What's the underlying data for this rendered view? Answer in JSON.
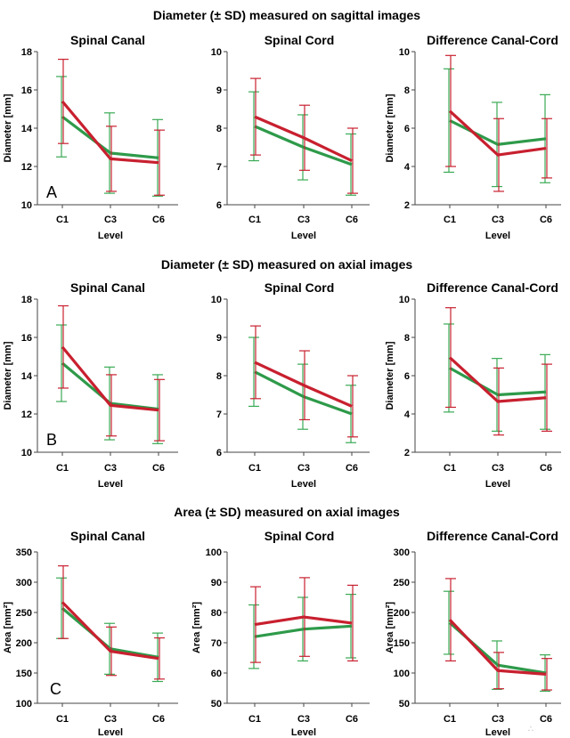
{
  "sections": [
    {
      "title": "Diameter (± SD) measured on sagittal images",
      "letter": "A",
      "ylabel": "Diameter [mm]",
      "xlabel": "Level"
    },
    {
      "title": "Diameter (± SD) measured on axial images",
      "letter": "B",
      "ylabel": "Diameter [mm]",
      "xlabel": "Level"
    },
    {
      "title": "Area (± SD) measured on axial images",
      "letter": "C",
      "ylabel": "Area [mm²]",
      "xlabel": "Level"
    }
  ],
  "colors": {
    "red": "#c8202f",
    "green": "#2e9a4a",
    "red_error": "#c8202f",
    "green_error": "#3aaa55"
  },
  "chart_data": [
    {
      "type": "line",
      "section": 0,
      "title": "Spinal Canal",
      "categories": [
        "C1",
        "C3",
        "C6"
      ],
      "ylim": [
        10,
        18
      ],
      "yticks": [
        10,
        12,
        14,
        16,
        18
      ],
      "xlabel": "Level",
      "ylabel": "Diameter [mm]",
      "series": [
        {
          "color": "red",
          "values": [
            15.4,
            12.4,
            12.2
          ],
          "sd": [
            2.2,
            1.7,
            1.7
          ]
        },
        {
          "color": "green",
          "values": [
            14.6,
            12.7,
            12.45
          ],
          "sd": [
            2.1,
            2.1,
            2.0
          ]
        }
      ]
    },
    {
      "type": "line",
      "section": 0,
      "title": "Spinal Cord",
      "categories": [
        "C1",
        "C3",
        "C6"
      ],
      "ylim": [
        6,
        10
      ],
      "yticks": [
        6,
        7,
        8,
        9,
        10
      ],
      "xlabel": "Level",
      "ylabel": "",
      "series": [
        {
          "color": "red",
          "values": [
            8.3,
            7.75,
            7.15
          ],
          "sd": [
            1.0,
            0.85,
            0.85
          ]
        },
        {
          "color": "green",
          "values": [
            8.05,
            7.5,
            7.05
          ],
          "sd": [
            0.9,
            0.85,
            0.8
          ]
        }
      ]
    },
    {
      "type": "line",
      "section": 0,
      "title": "Difference Canal-Cord",
      "categories": [
        "C1",
        "C3",
        "C6"
      ],
      "ylim": [
        2,
        10
      ],
      "yticks": [
        2,
        4,
        6,
        8,
        10
      ],
      "xlabel": "Level",
      "ylabel": "Diameter [mm]",
      "series": [
        {
          "color": "red",
          "values": [
            6.9,
            4.6,
            4.95
          ],
          "sd": [
            2.9,
            1.9,
            1.55
          ]
        },
        {
          "color": "green",
          "values": [
            6.4,
            5.15,
            5.45
          ],
          "sd": [
            2.7,
            2.2,
            2.3
          ]
        }
      ]
    },
    {
      "type": "line",
      "section": 1,
      "title": "Spinal Canal",
      "categories": [
        "C1",
        "C3",
        "C6"
      ],
      "ylim": [
        10,
        18
      ],
      "yticks": [
        10,
        12,
        14,
        16,
        18
      ],
      "xlabel": "Level",
      "ylabel": "Diameter [mm]",
      "series": [
        {
          "color": "red",
          "values": [
            15.5,
            12.45,
            12.2
          ],
          "sd": [
            2.15,
            1.6,
            1.6
          ]
        },
        {
          "color": "green",
          "values": [
            14.65,
            12.55,
            12.25
          ],
          "sd": [
            2.0,
            1.9,
            1.8
          ]
        }
      ]
    },
    {
      "type": "line",
      "section": 1,
      "title": "Spinal Cord",
      "categories": [
        "C1",
        "C3",
        "C6"
      ],
      "ylim": [
        6,
        10
      ],
      "yticks": [
        6,
        7,
        8,
        9,
        10
      ],
      "xlabel": "Level",
      "ylabel": "",
      "series": [
        {
          "color": "red",
          "values": [
            8.35,
            7.75,
            7.2
          ],
          "sd": [
            0.95,
            0.9,
            0.8
          ]
        },
        {
          "color": "green",
          "values": [
            8.1,
            7.45,
            7.0
          ],
          "sd": [
            0.9,
            0.85,
            0.75
          ]
        }
      ]
    },
    {
      "type": "line",
      "section": 1,
      "title": "Difference Canal-Cord",
      "categories": [
        "C1",
        "C3",
        "C6"
      ],
      "ylim": [
        2,
        10
      ],
      "yticks": [
        2,
        4,
        6,
        8,
        10
      ],
      "xlabel": "Level",
      "ylabel": "Diameter [mm]",
      "series": [
        {
          "color": "red",
          "values": [
            6.95,
            4.65,
            4.85
          ],
          "sd": [
            2.6,
            1.75,
            1.75
          ]
        },
        {
          "color": "green",
          "values": [
            6.4,
            5.0,
            5.15
          ],
          "sd": [
            2.3,
            1.9,
            1.95
          ]
        }
      ]
    },
    {
      "type": "line",
      "section": 2,
      "title": "Spinal Canal",
      "categories": [
        "C1",
        "C3",
        "C6"
      ],
      "ylim": [
        100,
        350
      ],
      "yticks": [
        100,
        150,
        200,
        250,
        300,
        350
      ],
      "xlabel": "Level",
      "ylabel": "Area [mm²]",
      "series": [
        {
          "color": "red",
          "values": [
            267,
            186,
            174
          ],
          "sd": [
            60,
            40,
            34
          ]
        },
        {
          "color": "green",
          "values": [
            257,
            190,
            176
          ],
          "sd": [
            50,
            42,
            40
          ]
        }
      ]
    },
    {
      "type": "line",
      "section": 2,
      "title": "Spinal Cord",
      "categories": [
        "C1",
        "C3",
        "C6"
      ],
      "ylim": [
        50,
        100
      ],
      "yticks": [
        50,
        60,
        70,
        80,
        90,
        100
      ],
      "xlabel": "Level",
      "ylabel": "Area [mm²]",
      "series": [
        {
          "color": "red",
          "values": [
            76,
            78.5,
            76.5
          ],
          "sd": [
            12.5,
            13,
            12.5
          ]
        },
        {
          "color": "green",
          "values": [
            72,
            74.5,
            75.5
          ],
          "sd": [
            10.5,
            10.5,
            10.5
          ]
        }
      ]
    },
    {
      "type": "line",
      "section": 2,
      "title": "Difference Canal-Cord",
      "categories": [
        "C1",
        "C3",
        "C6"
      ],
      "ylim": [
        50,
        300
      ],
      "yticks": [
        50,
        100,
        150,
        200,
        250,
        300
      ],
      "xlabel": "Level",
      "ylabel": "Area [mm²]",
      "series": [
        {
          "color": "red",
          "values": [
            188,
            104,
            98
          ],
          "sd": [
            68,
            30,
            26
          ]
        },
        {
          "color": "green",
          "values": [
            183,
            113,
            100
          ],
          "sd": [
            52,
            40,
            30
          ]
        }
      ]
    }
  ]
}
